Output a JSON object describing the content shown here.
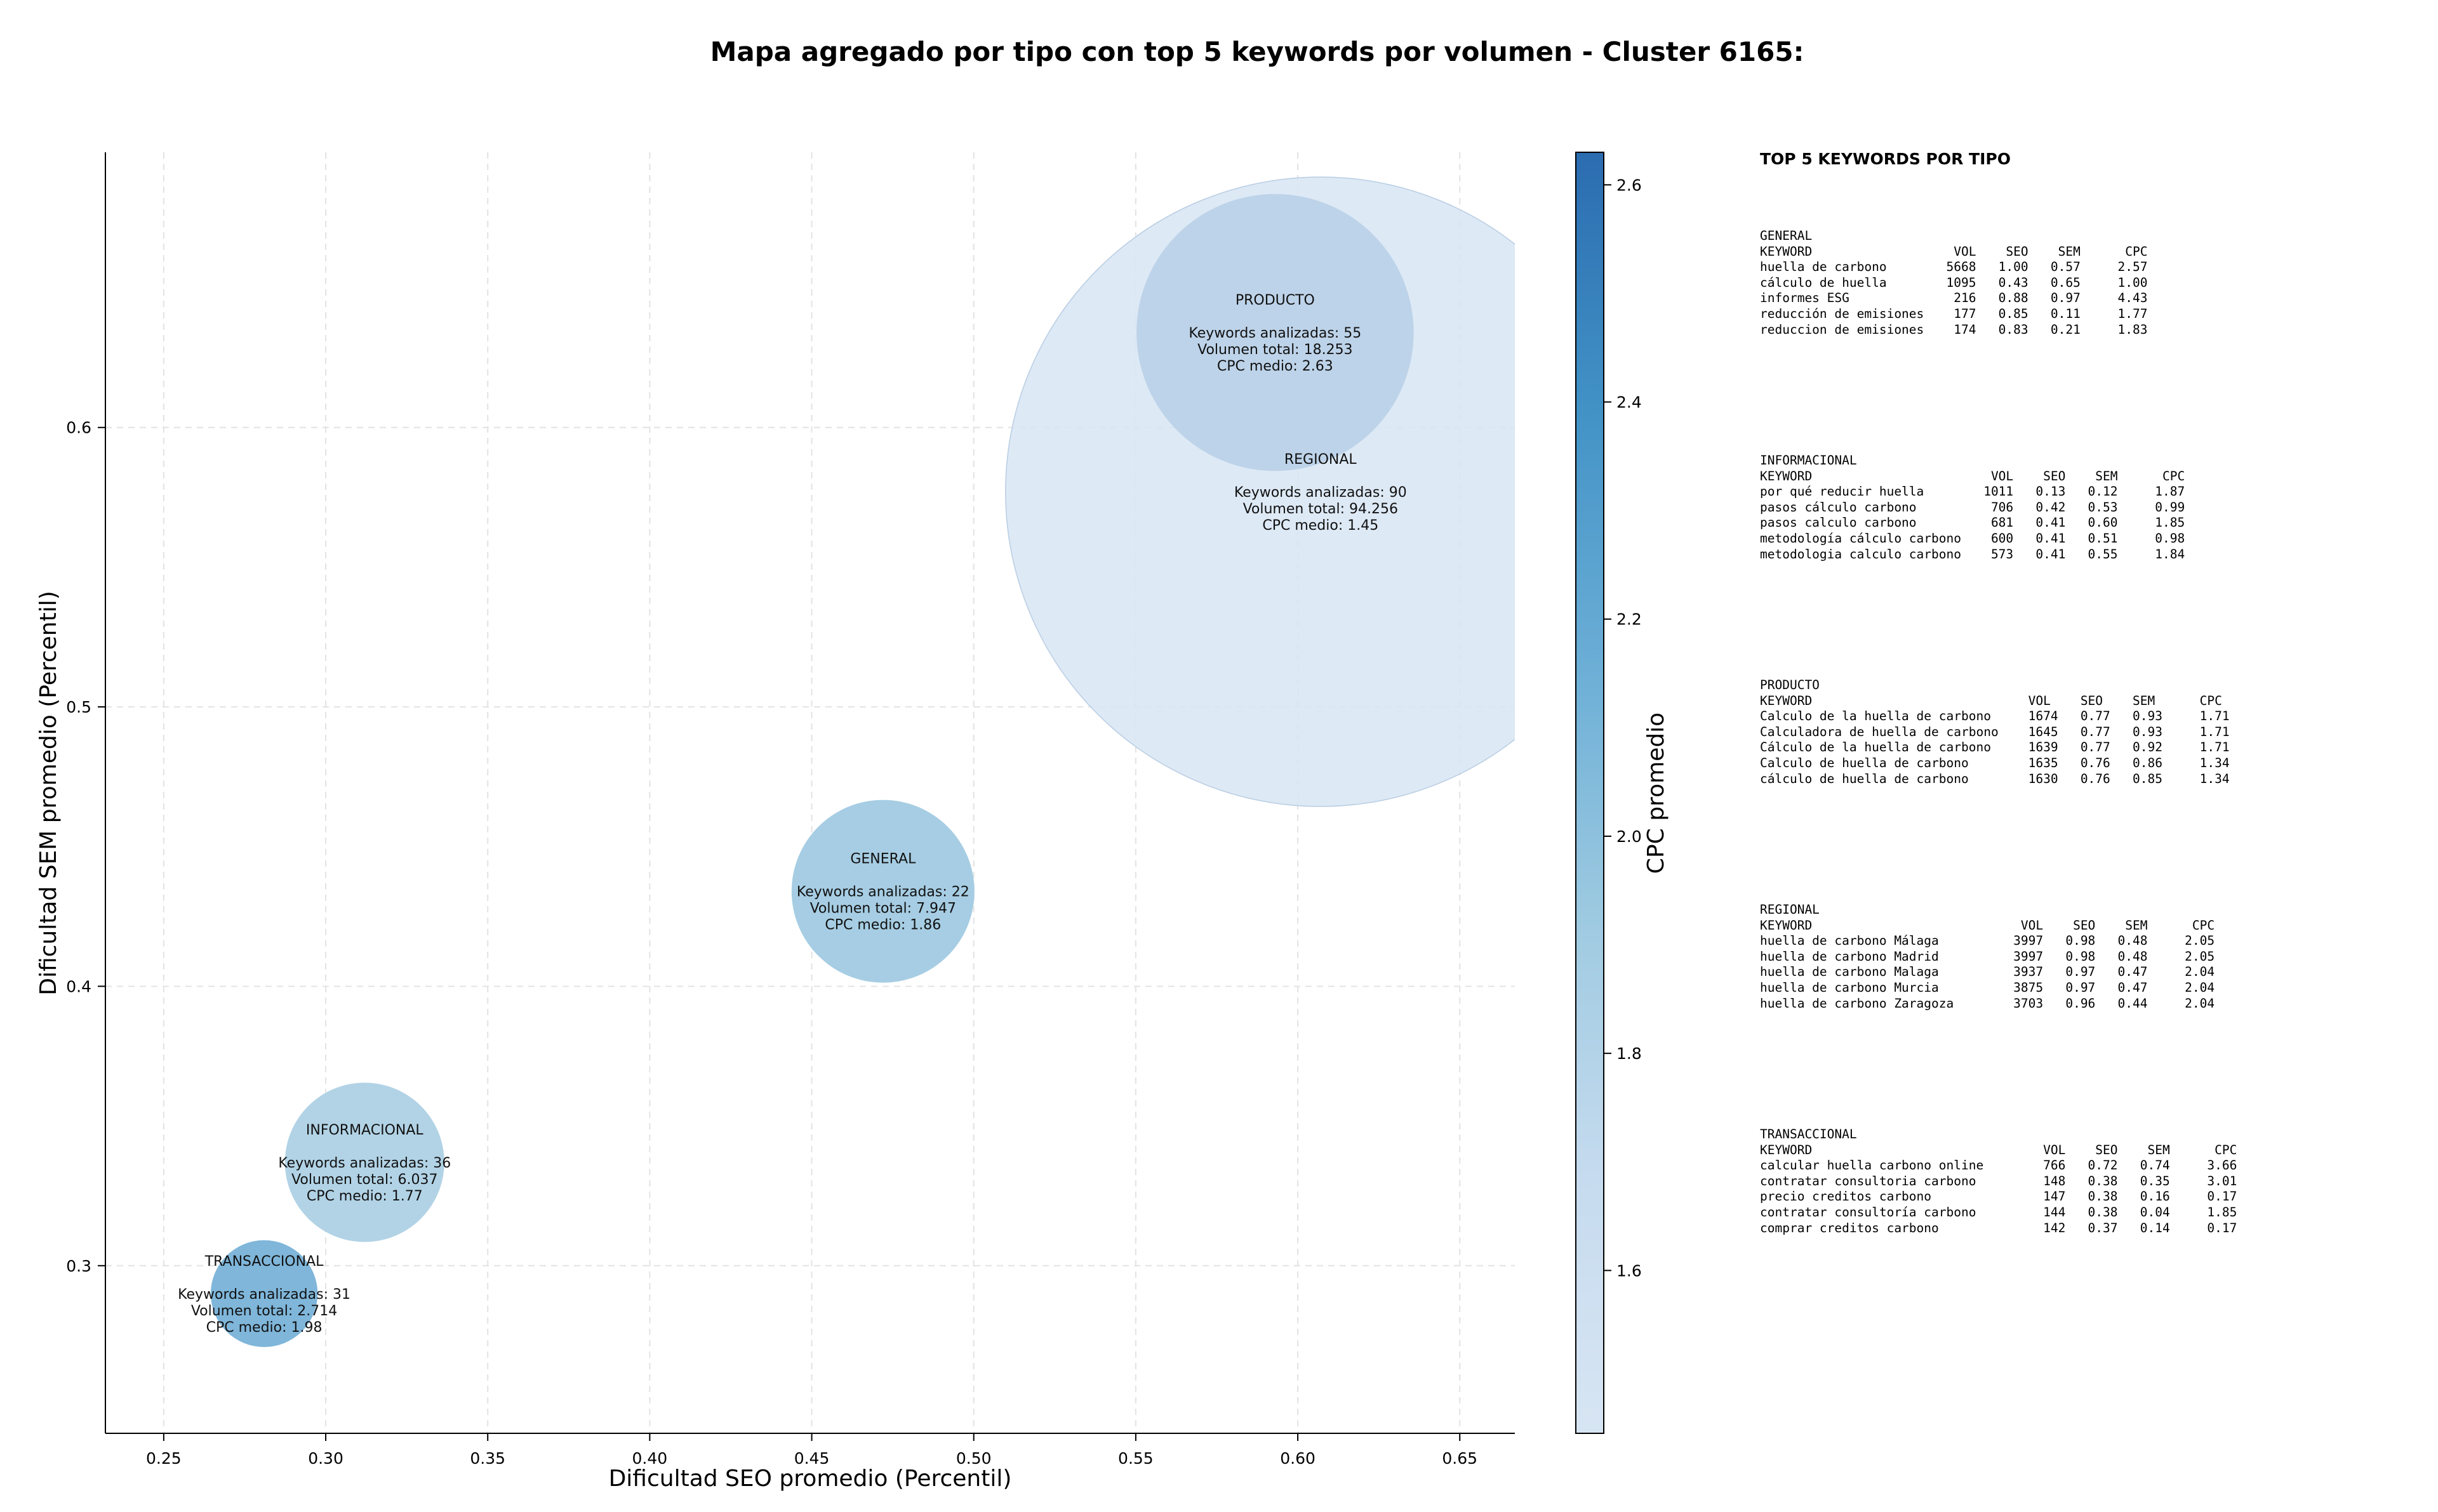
{
  "chart_data": {
    "type": "bubble",
    "title": "Mapa agregado por tipo con top 5 keywords por volumen - Cluster 6165:",
    "xlabel": "Dificultad SEO promedio (Percentil)",
    "ylabel": "Dificultad SEM promedio (Percentil)",
    "xlim": [
      0.232,
      0.667
    ],
    "ylim": [
      0.24,
      0.6985
    ],
    "x_ticks": [
      0.25,
      0.3,
      0.35,
      0.4,
      0.45,
      0.5,
      0.55,
      0.6,
      0.65
    ],
    "x_tick_labels": [
      "0.25",
      "0.30",
      "0.35",
      "0.40",
      "0.45",
      "0.50",
      "0.55",
      "0.60",
      "0.65"
    ],
    "y_ticks": [
      0.3,
      0.4,
      0.5,
      0.6
    ],
    "y_tick_labels": [
      "0.3",
      "0.4",
      "0.5",
      "0.6"
    ],
    "grid": true,
    "colorbar": {
      "label": "CPC promedio",
      "range": [
        1.45,
        2.63
      ],
      "ticks": [
        1.6,
        1.8,
        2.0,
        2.2,
        2.4,
        2.6
      ],
      "tick_labels": [
        "1.6",
        "1.8",
        "2.0",
        "2.2",
        "2.4",
        "2.6"
      ],
      "colors": [
        "#d7e5f3",
        "#c6dbef",
        "#9ecae1",
        "#6baed6",
        "#4292c6",
        "#2b6cb0"
      ]
    },
    "bubbles": [
      {
        "name": "PRODUCTO",
        "x": 0.593,
        "y": 0.634,
        "keywords": 55,
        "volume": 18253,
        "label_lines": [
          "PRODUCTO",
          "",
          "Keywords analizadas: 55",
          "Volumen total: 18.253",
          "CPC medio: 2.63"
        ],
        "cpc": 2.63,
        "color": "#2b6cb0",
        "alpha": 1
      },
      {
        "name": "REGIONAL",
        "x": 0.607,
        "y": 0.577,
        "keywords": 90,
        "volume": 94256,
        "label_lines": [
          "REGIONAL",
          "",
          "Keywords analizadas: 90",
          "Volumen total: 94.256",
          "CPC medio: 1.45"
        ],
        "cpc": 1.45,
        "color": "#d7e5f3",
        "alpha": 0.85
      },
      {
        "name": "GENERAL",
        "x": 0.472,
        "y": 0.434,
        "keywords": 22,
        "volume": 7947,
        "label_lines": [
          "GENERAL",
          "",
          "Keywords analizadas: 22",
          "Volumen total: 7.947",
          "CPC medio: 1.86"
        ],
        "cpc": 1.86,
        "color": "#a6cde3",
        "alpha": 1
      },
      {
        "name": "INFORMACIONAL",
        "x": 0.312,
        "y": 0.337,
        "keywords": 36,
        "volume": 6037,
        "label_lines": [
          "INFORMACIONAL",
          "",
          "Keywords analizadas: 36",
          "Volumen total: 6.037",
          "CPC medio: 1.77"
        ],
        "cpc": 1.77,
        "color": "#b2d3e6",
        "alpha": 1
      },
      {
        "name": "TRANSACCIONAL",
        "x": 0.281,
        "y": 0.29,
        "keywords": 31,
        "volume": 2714,
        "label_lines": [
          "TRANSACCIONAL",
          "",
          "Keywords analizadas: 31",
          "Volumen total: 2.714",
          "CPC medio: 1.98"
        ],
        "cpc": 1.98,
        "color": "#7fb6da",
        "alpha": 1
      }
    ]
  },
  "keyword_panel": {
    "heading": "TOP 5 KEYWORDS POR TIPO",
    "blocks": [
      {
        "name": "GENERAL",
        "lines": [
          "GENERAL",
          "KEYWORD                   VOL    SEO    SEM      CPC",
          "huella de carbono        5668   1.00   0.57     2.57",
          "cálculo de huella        1095   0.43   0.65     1.00",
          "informes ESG              216   0.88   0.97     4.43",
          "reducción de emisiones    177   0.85   0.11     1.77",
          "reduccion de emisiones    174   0.83   0.21     1.83"
        ]
      },
      {
        "name": "INFORMACIONAL",
        "lines": [
          "INFORMACIONAL",
          "KEYWORD                        VOL    SEO    SEM      CPC",
          "por qué reducir huella        1011   0.13   0.12     1.87",
          "pasos cálculo carbono          706   0.42   0.53     0.99",
          "pasos calculo carbono          681   0.41   0.60     1.85",
          "metodología cálculo carbono    600   0.41   0.51     0.98",
          "metodologia calculo carbono    573   0.41   0.55     1.84"
        ]
      },
      {
        "name": "PRODUCTO",
        "lines": [
          "PRODUCTO",
          "KEYWORD                             VOL    SEO    SEM      CPC",
          "Calculo de la huella de carbono     1674   0.77   0.93     1.71",
          "Calculadora de huella de carbono    1645   0.77   0.93     1.71",
          "Cálculo de la huella de carbono     1639   0.77   0.92     1.71",
          "Calculo de huella de carbono        1635   0.76   0.86     1.34",
          "cálculo de huella de carbono        1630   0.76   0.85     1.34"
        ]
      },
      {
        "name": "REGIONAL",
        "lines": [
          "REGIONAL",
          "KEYWORD                            VOL    SEO    SEM      CPC",
          "huella de carbono Málaga          3997   0.98   0.48     2.05",
          "huella de carbono Madrid          3997   0.98   0.48     2.05",
          "huella de carbono Malaga          3937   0.97   0.47     2.04",
          "huella de carbono Murcia          3875   0.97   0.47     2.04",
          "huella de carbono Zaragoza        3703   0.96   0.44     2.04"
        ]
      },
      {
        "name": "TRANSACCIONAL",
        "lines": [
          "TRANSACCIONAL",
          "KEYWORD                               VOL    SEO    SEM      CPC",
          "calcular huella carbono online        766   0.72   0.74     3.66",
          "contratar consultoria carbono         148   0.38   0.35     3.01",
          "precio creditos carbono               147   0.38   0.16     0.17",
          "contratar consultoría carbono         144   0.38   0.04     1.85",
          "comprar creditos carbono              142   0.37   0.14     0.17"
        ]
      }
    ]
  }
}
